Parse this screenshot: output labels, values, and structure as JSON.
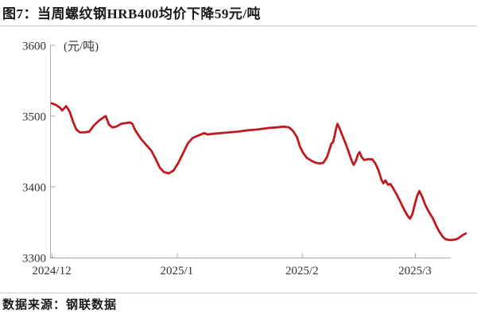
{
  "header": {
    "title": "图7：当周螺纹钢HRB400均价下降59元/吨"
  },
  "footer": {
    "source": "数据来源：钢联数据"
  },
  "colors": {
    "line": "#bf1a1f",
    "axis": "#a8a8a8",
    "divider": "#c9c9c9",
    "text": "#1a1a1a"
  },
  "chart_data": {
    "type": "line",
    "title": "当周螺纹钢HRB400均价下降59元/吨",
    "unit_label": "(元/吨)",
    "xlabel": "",
    "ylabel": "元/吨",
    "ylim": [
      3300,
      3600
    ],
    "x_domain_days": [
      0,
      103
    ],
    "grid": false,
    "legend": "none",
    "y_ticks": [
      3600,
      3500,
      3400,
      3300
    ],
    "x_ticks": [
      {
        "day": 0,
        "label": "2024/12"
      },
      {
        "day": 31,
        "label": "2025/1"
      },
      {
        "day": 62,
        "label": "2025/2"
      },
      {
        "day": 90,
        "label": "2025/3"
      }
    ],
    "series": [
      {
        "name": "螺纹钢HRB400均价",
        "color": "#bf1a1f",
        "points": [
          [
            0,
            3518
          ],
          [
            1,
            3516
          ],
          [
            2,
            3512
          ],
          [
            2.6,
            3508
          ],
          [
            3.6,
            3514
          ],
          [
            4.5,
            3506
          ],
          [
            5.3,
            3492
          ],
          [
            6.1,
            3481
          ],
          [
            7,
            3477
          ],
          [
            8,
            3477
          ],
          [
            9.3,
            3478
          ],
          [
            10.5,
            3487
          ],
          [
            11.6,
            3493
          ],
          [
            12.8,
            3498
          ],
          [
            13.4,
            3500
          ],
          [
            14.2,
            3488
          ],
          [
            15,
            3484
          ],
          [
            16,
            3485
          ],
          [
            17.2,
            3489
          ],
          [
            18.3,
            3490
          ],
          [
            19.4,
            3491
          ],
          [
            20,
            3489
          ],
          [
            20.7,
            3480
          ],
          [
            22.1,
            3468
          ],
          [
            23.3,
            3460
          ],
          [
            24.7,
            3451
          ],
          [
            25.8,
            3439
          ],
          [
            26.8,
            3427
          ],
          [
            27.8,
            3421
          ],
          [
            29,
            3419
          ],
          [
            30.2,
            3423
          ],
          [
            31.4,
            3434
          ],
          [
            32.5,
            3447
          ],
          [
            33.7,
            3461
          ],
          [
            34.9,
            3469
          ],
          [
            36.1,
            3472
          ],
          [
            37,
            3474
          ],
          [
            37.8,
            3476
          ],
          [
            38.6,
            3474
          ],
          [
            40,
            3475
          ],
          [
            42,
            3476
          ],
          [
            44,
            3477
          ],
          [
            46,
            3478
          ],
          [
            48.7,
            3480
          ],
          [
            51,
            3481
          ],
          [
            53.5,
            3483
          ],
          [
            55.8,
            3484
          ],
          [
            57.5,
            3485
          ],
          [
            58.8,
            3484
          ],
          [
            59.8,
            3479
          ],
          [
            60.8,
            3470
          ],
          [
            61.5,
            3457
          ],
          [
            62.3,
            3448
          ],
          [
            63.2,
            3441
          ],
          [
            64.3,
            3437
          ],
          [
            65.4,
            3434
          ],
          [
            66.5,
            3433
          ],
          [
            67.3,
            3434
          ],
          [
            68.2,
            3442
          ],
          [
            68.8,
            3452
          ],
          [
            69.3,
            3461
          ],
          [
            69.7,
            3463
          ],
          [
            70.1,
            3472
          ],
          [
            70.5,
            3483
          ],
          [
            70.8,
            3489
          ],
          [
            71.3,
            3483
          ],
          [
            72,
            3473
          ],
          [
            72.7,
            3463
          ],
          [
            73.4,
            3452
          ],
          [
            74.2,
            3439
          ],
          [
            74.8,
            3431
          ],
          [
            75.4,
            3437
          ],
          [
            75.9,
            3446
          ],
          [
            76.3,
            3449
          ],
          [
            76.8,
            3442
          ],
          [
            77.4,
            3438
          ],
          [
            78.3,
            3439
          ],
          [
            79.4,
            3439
          ],
          [
            80.2,
            3433
          ],
          [
            81,
            3423
          ],
          [
            81.7,
            3410
          ],
          [
            82.2,
            3405
          ],
          [
            82.7,
            3409
          ],
          [
            83.3,
            3403
          ],
          [
            83.9,
            3404
          ],
          [
            84.6,
            3398
          ],
          [
            85.3,
            3391
          ],
          [
            86.3,
            3380
          ],
          [
            87.3,
            3368
          ],
          [
            88.2,
            3359
          ],
          [
            88.8,
            3355
          ],
          [
            89.4,
            3362
          ],
          [
            90,
            3376
          ],
          [
            90.6,
            3388
          ],
          [
            91.1,
            3394
          ],
          [
            91.8,
            3386
          ],
          [
            92.6,
            3374
          ],
          [
            93.5,
            3364
          ],
          [
            94.4,
            3356
          ],
          [
            95.2,
            3346
          ],
          [
            96,
            3337
          ],
          [
            96.8,
            3330
          ],
          [
            97.6,
            3326
          ],
          [
            98.4,
            3325
          ],
          [
            99.4,
            3325
          ],
          [
            100.3,
            3326
          ],
          [
            101.2,
            3329
          ],
          [
            101.9,
            3332
          ],
          [
            102.6,
            3334
          ]
        ]
      }
    ]
  }
}
